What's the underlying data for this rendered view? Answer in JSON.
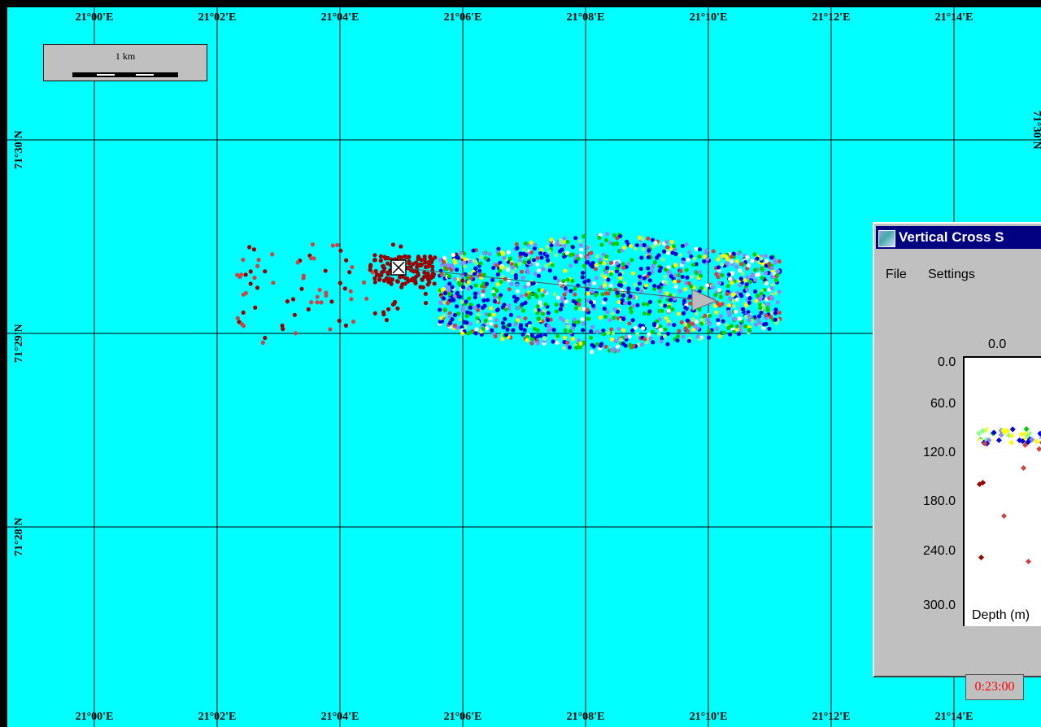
{
  "map": {
    "background_color": "#00ffff",
    "grid_color": "#000000",
    "lon_labels": [
      "21°00'E",
      "21°02'E",
      "21°04'E",
      "21°06'E",
      "21°08'E",
      "21°10'E",
      "21°12'E",
      "21°14'E"
    ],
    "lat_labels_left": [
      "71°30'N",
      "71°29'N",
      "71°28'N"
    ],
    "lat_labels_right": [
      "71°30'N"
    ],
    "track_marker_icon": "crossed-box-icon",
    "heading_marker_icon": "triangle-arrow-icon"
  },
  "scale_bar": {
    "label": "1 km"
  },
  "event_colors": [
    "#0000dd",
    "#00cc00",
    "#ffff00",
    "#8888ff",
    "#cc4444",
    "#990000",
    "#88ff88",
    "#ffffff"
  ],
  "cross_section": {
    "title": "Vertical Cross S",
    "menu": {
      "file": "File",
      "settings": "Settings"
    },
    "x_start_label": "0.0",
    "y_ticks": [
      "0.0",
      "60.0",
      "120.0",
      "180.0",
      "240.0",
      "300.0"
    ],
    "y_axis_label": "Depth (m)"
  },
  "time_display": "0:23:00"
}
